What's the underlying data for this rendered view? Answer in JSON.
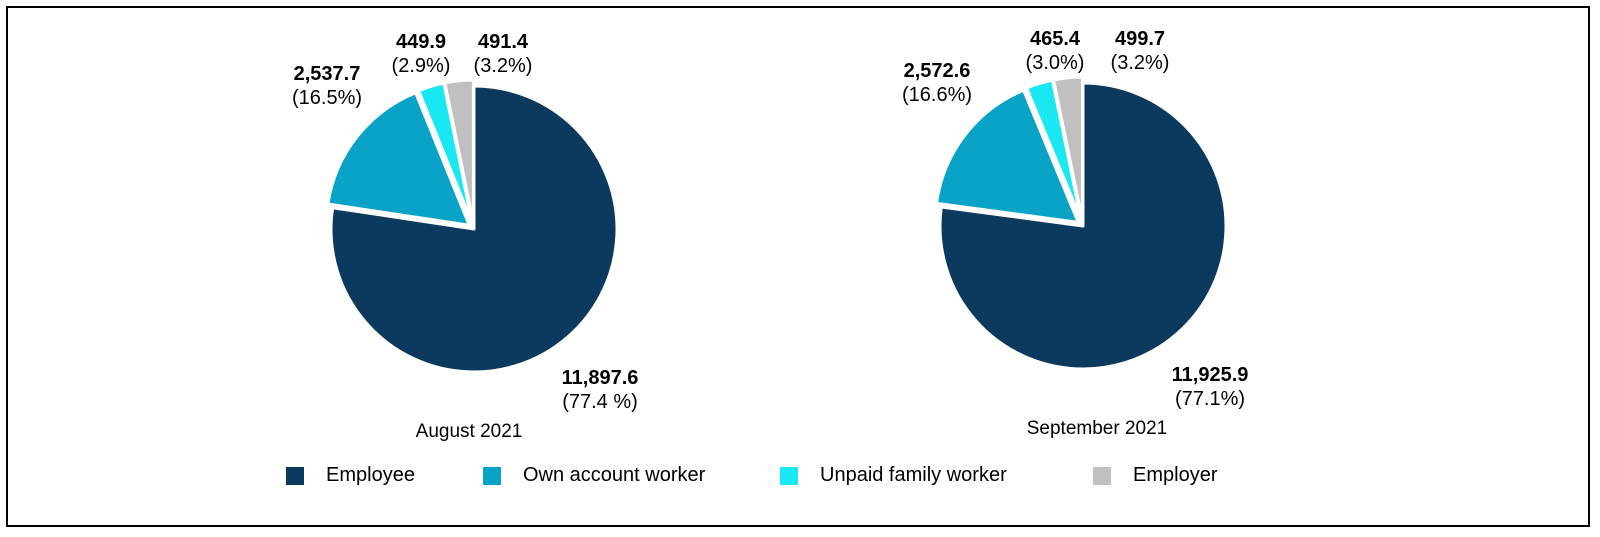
{
  "chart_data": [
    {
      "type": "pie",
      "title": "August 2021",
      "slices": [
        {
          "name": "Employee",
          "value": 11897.6,
          "value_label": "11,897.6",
          "pct_label": "(77.4 %)",
          "color": "#0b3a5e"
        },
        {
          "name": "Own account worker",
          "value": 2537.7,
          "value_label": "2,537.7",
          "pct_label": "(16.5%)",
          "color": "#0aa3c8"
        },
        {
          "name": "Unpaid family worker",
          "value": 449.9,
          "value_label": "449.9",
          "pct_label": "(2.9%)",
          "color": "#19e8f2"
        },
        {
          "name": "Employer",
          "value": 491.4,
          "value_label": "491.4",
          "pct_label": "(3.2%)",
          "color": "#c0c0c0"
        }
      ]
    },
    {
      "type": "pie",
      "title": "September 2021",
      "slices": [
        {
          "name": "Employee",
          "value": 11925.9,
          "value_label": "11,925.9",
          "pct_label": "(77.1%)",
          "color": "#0b3a5e"
        },
        {
          "name": "Own account worker",
          "value": 2572.6,
          "value_label": "2,572.6",
          "pct_label": "(16.6%)",
          "color": "#0aa3c8"
        },
        {
          "name": "Unpaid family worker",
          "value": 465.4,
          "value_label": "465.4",
          "pct_label": "(3.0%)",
          "color": "#19e8f2"
        },
        {
          "name": "Employer",
          "value": 499.7,
          "value_label": "499.7",
          "pct_label": "(3.2%)",
          "color": "#c0c0c0"
        }
      ]
    }
  ],
  "legend": [
    {
      "label": "Employee",
      "color": "#0b3a5e"
    },
    {
      "label": "Own account worker",
      "color": "#0aa3c8"
    },
    {
      "label": "Unpaid family worker",
      "color": "#19e8f2"
    },
    {
      "label": "Employer",
      "color": "#c0c0c0"
    }
  ]
}
